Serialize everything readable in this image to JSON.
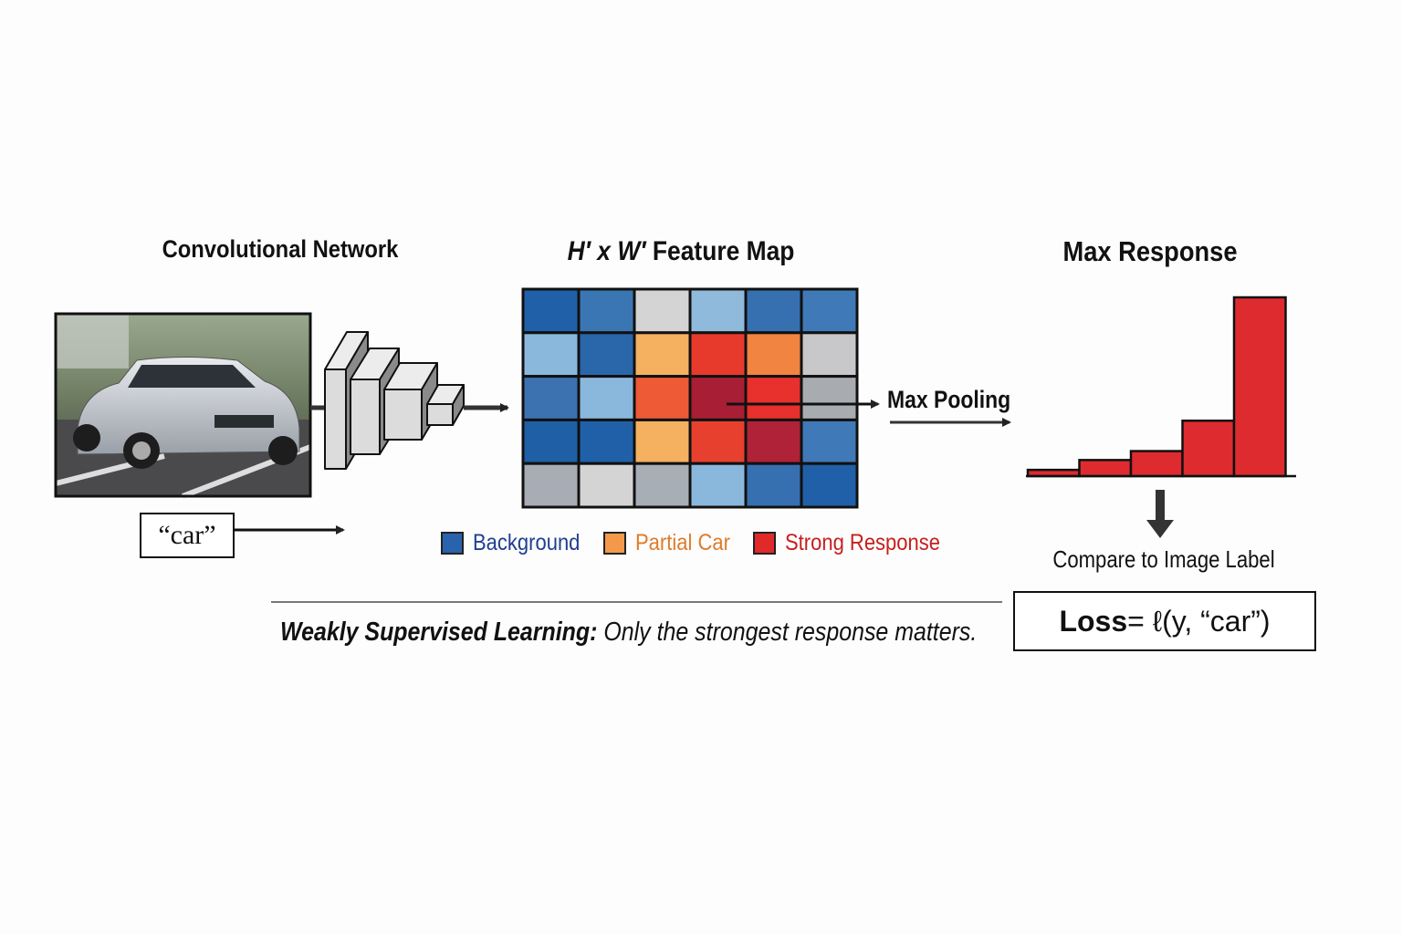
{
  "conv_network": {
    "title": "Convolutional Network",
    "input_label": "“car”"
  },
  "feature_map": {
    "title_parts": [
      "H′ x W′",
      " Feature Map"
    ],
    "grid_colors": [
      [
        "#2060a8",
        "#3a76b4",
        "#d4d4d4",
        "#8fbadb",
        "#3670b0",
        "#4079b8"
      ],
      [
        "#8ab8dc",
        "#2a66aa",
        "#f5b060",
        "#e83a2c",
        "#f08440",
        "#c8c8ca"
      ],
      [
        "#3c72b0",
        "#8ab8dc",
        "#ee5a36",
        "#a81e34",
        "#e8302c",
        "#a8abb0"
      ],
      [
        "#1f5fa6",
        "#2060a8",
        "#f5b060",
        "#e8402e",
        "#b02238",
        "#4079b8"
      ],
      [
        "#a8acb4",
        "#d4d4d4",
        "#a8aeb6",
        "#8ab8dc",
        "#3670b0",
        "#2060a8"
      ]
    ]
  },
  "legend": [
    {
      "label": "Background",
      "color": "#2a63ad",
      "text_color": "#1f3f8f"
    },
    {
      "label": "Partial Car",
      "color": "#f2994a",
      "text_color": "#e07b2a"
    },
    {
      "label": "Strong Response",
      "color": "#e02a2a",
      "text_color": "#c81e1e"
    }
  ],
  "max_pooling": {
    "label": "Max Pooling"
  },
  "max_response": {
    "title": "Max Response",
    "bar_color": "#de2b2f",
    "bars": [
      0.035,
      0.09,
      0.14,
      0.31,
      1.0
    ]
  },
  "compare": {
    "label": "Compare to Image Label"
  },
  "loss": {
    "bold": "Loss",
    "formula": " = ℓ(y, “car”)"
  },
  "caption": {
    "bold": "Weakly Supervised Learning:",
    "rest": " Only the strongest response matters."
  }
}
